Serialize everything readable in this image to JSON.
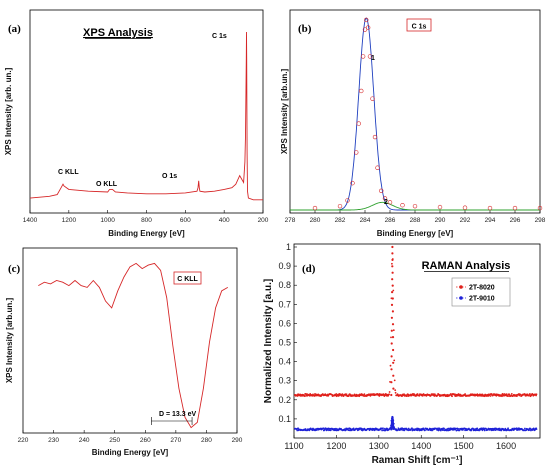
{
  "chart_data": [
    {
      "panel": "(a)",
      "type": "line",
      "title": "XPS Analysis",
      "xlabel": "Binding Energy [eV]",
      "ylabel": "XPS Intensity [arb. un.]",
      "xlim": [
        1400,
        200
      ],
      "xreversed": true,
      "xticks": [
        1400,
        1200,
        1000,
        800,
        600,
        400,
        200
      ],
      "color": "#d62728",
      "annotations": [
        {
          "text": "C 1s",
          "x": 285
        },
        {
          "text": "O 1s",
          "x": 530
        },
        {
          "text": "O KLL",
          "x": 975
        },
        {
          "text": "C KLL",
          "x": 1225
        }
      ],
      "x": [
        1400,
        1300,
        1260,
        1240,
        1230,
        1225,
        1200,
        1100,
        1000,
        990,
        975,
        960,
        900,
        800,
        700,
        600,
        540,
        535,
        531,
        528,
        525,
        500,
        450,
        400,
        360,
        340,
        320,
        300,
        293,
        290,
        286,
        285,
        284,
        282,
        280,
        275,
        250,
        220,
        200
      ],
      "y": [
        0.04,
        0.05,
        0.06,
        0.1,
        0.12,
        0.11,
        0.09,
        0.08,
        0.075,
        0.09,
        0.09,
        0.075,
        0.07,
        0.065,
        0.065,
        0.07,
        0.08,
        0.1,
        0.14,
        0.1,
        0.08,
        0.075,
        0.08,
        0.09,
        0.1,
        0.12,
        0.17,
        0.13,
        0.25,
        0.4,
        0.85,
        1.0,
        0.85,
        0.3,
        0.08,
        0.04,
        0.03,
        0.03,
        0.03
      ]
    },
    {
      "panel": "(b)",
      "type": "line",
      "title": "C 1s",
      "xlabel": "Binding Energy [eV]",
      "ylabel": "XPS Intensity [arb.un.]",
      "xlim": [
        278,
        298
      ],
      "xticks": [
        278,
        280,
        282,
        284,
        286,
        288,
        290,
        292,
        294,
        296,
        298
      ],
      "series": [
        {
          "name": "1",
          "color": "#1f3fbf",
          "center": 284.1,
          "sigma": 0.6,
          "amp": 1.0
        },
        {
          "name": "2",
          "color": "#2ca02c",
          "center": 285.4,
          "sigma": 0.8,
          "amp": 0.04
        }
      ],
      "markers": {
        "color": "#d62728",
        "x": [
          280,
          282,
          282.6,
          283.0,
          283.3,
          283.5,
          283.7,
          283.85,
          284.0,
          284.1,
          284.25,
          284.4,
          284.6,
          284.8,
          285.0,
          285.3,
          285.6,
          286,
          287,
          288,
          290,
          292,
          294,
          296,
          298
        ],
        "y": [
          0.01,
          0.02,
          0.05,
          0.14,
          0.3,
          0.45,
          0.62,
          0.8,
          0.94,
          0.99,
          0.95,
          0.8,
          0.58,
          0.38,
          0.22,
          0.1,
          0.06,
          0.04,
          0.025,
          0.02,
          0.015,
          0.012,
          0.01,
          0.01,
          0.01
        ]
      }
    },
    {
      "panel": "(c)",
      "type": "line",
      "title": "C KLL",
      "xlabel": "Binding Energy [eV]",
      "ylabel": "XPS Intensity [arb.un.]",
      "xlim": [
        220,
        290
      ],
      "xticks": [
        220,
        230,
        240,
        250,
        260,
        270,
        280,
        290
      ],
      "color": "#d62728",
      "annotation": "D = 13.3 eV",
      "x": [
        225,
        227,
        229,
        231,
        233,
        235,
        237,
        239,
        241,
        243,
        245,
        247,
        249,
        251,
        253,
        255,
        257,
        259,
        261,
        263,
        265,
        267,
        269,
        271,
        273,
        275,
        277,
        279,
        281,
        283,
        285,
        287
      ],
      "y": [
        0.85,
        0.87,
        0.86,
        0.88,
        0.87,
        0.85,
        0.88,
        0.85,
        0.84,
        0.88,
        0.84,
        0.76,
        0.72,
        0.82,
        0.9,
        0.96,
        0.98,
        0.95,
        0.97,
        0.98,
        0.94,
        0.78,
        0.5,
        0.25,
        0.08,
        0.02,
        0.05,
        0.25,
        0.52,
        0.72,
        0.82,
        0.84
      ]
    },
    {
      "panel": "(d)",
      "type": "line",
      "title": "RAMAN Analysis",
      "xlabel": "Raman Shift [cm⁻¹]",
      "ylabel": "Normalized Intensity [a.u.]",
      "xlim": [
        1100,
        1680
      ],
      "ylim": [
        0,
        1
      ],
      "xticks": [
        1100,
        1200,
        1300,
        1400,
        1500,
        1600
      ],
      "yticks": [
        0.1,
        0.2,
        0.3,
        0.4,
        0.5,
        0.6,
        0.7,
        0.8,
        0.9,
        1
      ],
      "series": [
        {
          "name": "2T-8020",
          "color": "#e0201b",
          "baseline": 0.225,
          "peak_x": 1332,
          "peak_y": 1.0,
          "width": 2.5
        },
        {
          "name": "2T-9010",
          "color": "#1f22d8",
          "baseline": 0.045,
          "peak_x": 1332,
          "peak_y": 0.11,
          "width": 2.5
        }
      ]
    }
  ]
}
